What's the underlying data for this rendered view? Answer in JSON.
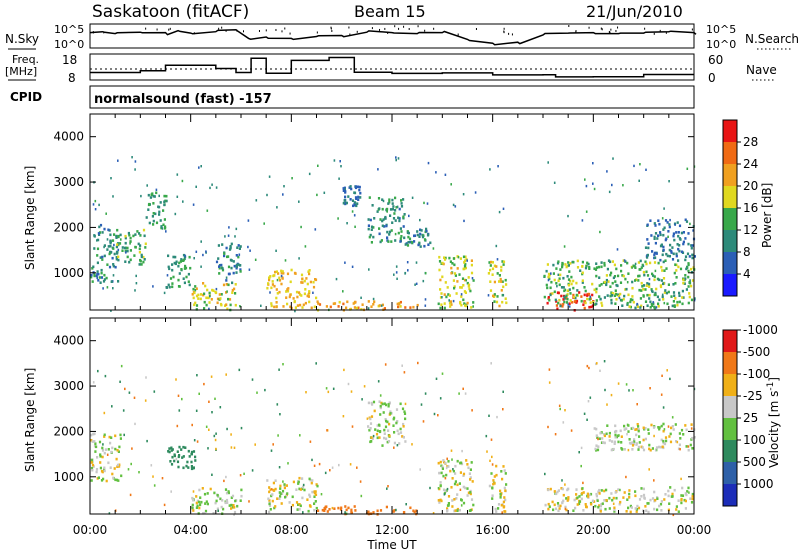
{
  "header": {
    "station": "Saskatoon (fitACF)",
    "beam": "Beam 15",
    "date": "21/Jun/2010"
  },
  "side_labels": {
    "nsky": "N.Sky",
    "freq_line1": "Freq.",
    "freq_line2": "[MHz]",
    "cpid": "CPID",
    "nsearch": "N.Search",
    "nave": "Nave"
  },
  "cpid_text": "normalsound (fast) -157",
  "time_axis": {
    "label": "Time UT",
    "ticks": [
      "00:00",
      "04:00",
      "08:00",
      "12:00",
      "16:00",
      "20:00",
      "00:00"
    ]
  },
  "range_axis": {
    "label": "Slant Range [km]",
    "ticks": [
      "1000",
      "2000",
      "3000",
      "4000"
    ]
  },
  "noise_axis": {
    "left_ticks": [
      "10^5",
      "10^0"
    ],
    "right_ticks": [
      "10^5",
      "10^0"
    ]
  },
  "freq_axis": {
    "left_ticks": [
      "18",
      "8"
    ],
    "right_ticks": [
      "60",
      "0"
    ]
  },
  "power_colorbar": {
    "label": "Power [dB]",
    "ticks": [
      "4",
      "8",
      "12",
      "16",
      "20",
      "24",
      "28"
    ],
    "colors": [
      "#1a1aff",
      "#2b5fb6",
      "#2d8a7a",
      "#38a84a",
      "#e0d820",
      "#f0a020",
      "#f06a14",
      "#e81414"
    ]
  },
  "velocity_colorbar": {
    "label": "Velocity [m s^-1]",
    "ticks": [
      "1000",
      "500",
      "100",
      "25",
      "-25",
      "-100",
      "-500",
      "-1000"
    ],
    "colors": [
      "#1c2db8",
      "#2e60a8",
      "#2e8a5e",
      "#62c040",
      "#c8c8c8",
      "#f0b018",
      "#f07818",
      "#e01818"
    ]
  },
  "chart_data": {
    "type": "heatmap",
    "x_range_hours": [
      0,
      24
    ],
    "y_range_km": [
      180,
      4500
    ],
    "gap_intervals_hours": [
      [
        15.3,
        15.7
      ],
      [
        16.5,
        18.0
      ]
    ],
    "noise_sky_log10": [
      [
        0,
        3.2
      ],
      [
        0.5,
        3.4
      ],
      [
        1.0,
        3.0
      ],
      [
        2.0,
        3.3
      ],
      [
        3.0,
        3.2
      ],
      [
        3.5,
        3.6
      ],
      [
        4.0,
        3.1
      ],
      [
        5.0,
        3.4
      ],
      [
        5.8,
        3.8
      ],
      [
        6.3,
        2.0
      ],
      [
        7.0,
        2.3
      ],
      [
        8.0,
        2.0
      ],
      [
        9.0,
        2.4
      ],
      [
        10.0,
        2.6
      ],
      [
        11.0,
        3.3
      ],
      [
        12.0,
        3.2
      ],
      [
        13.0,
        3.0
      ],
      [
        14.0,
        3.2
      ],
      [
        15.0,
        1.8
      ],
      [
        16.0,
        1.0
      ],
      [
        17.0,
        1.2
      ],
      [
        18.0,
        2.7
      ],
      [
        19.0,
        3.1
      ],
      [
        20.0,
        3.2
      ],
      [
        21.0,
        3.0
      ],
      [
        22.0,
        3.1
      ],
      [
        23.0,
        3.4
      ],
      [
        24.0,
        3.2
      ]
    ],
    "frequency_mhz": [
      [
        0,
        10.5
      ],
      [
        1.0,
        10.5
      ],
      [
        2.0,
        11.3
      ],
      [
        3.0,
        13.8
      ],
      [
        5.0,
        12.3
      ],
      [
        5.8,
        10.5
      ],
      [
        6.4,
        17.0
      ],
      [
        7.0,
        10.2
      ],
      [
        8.0,
        16.0
      ],
      [
        9.5,
        17.3
      ],
      [
        10.5,
        10.6
      ],
      [
        12.0,
        10.1
      ],
      [
        14.0,
        10.3
      ],
      [
        16.0,
        9.4
      ],
      [
        18.0,
        9.5
      ],
      [
        18.5,
        8.5
      ],
      [
        20.0,
        8.6
      ],
      [
        22.0,
        9.6
      ],
      [
        24.0,
        9.6
      ]
    ],
    "power_blobs": [
      {
        "t": [
          0.0,
          1.1
        ],
        "r": [
          800,
          2100
        ],
        "db": 10
      },
      {
        "t": [
          1.0,
          2.2
        ],
        "r": [
          1200,
          2000
        ],
        "db": 13
      },
      {
        "t": [
          2.2,
          3.0
        ],
        "r": [
          2000,
          2800
        ],
        "db": 11
      },
      {
        "t": [
          3.0,
          4.0
        ],
        "r": [
          700,
          1500
        ],
        "db": 12
      },
      {
        "t": [
          4.0,
          5.8
        ],
        "r": [
          200,
          800
        ],
        "db": 18
      },
      {
        "t": [
          5.0,
          6.0
        ],
        "r": [
          800,
          1700
        ],
        "db": 10
      },
      {
        "t": [
          7.0,
          9.0
        ],
        "r": [
          250,
          1100
        ],
        "db": 20
      },
      {
        "t": [
          9.0,
          13.0
        ],
        "r": [
          200,
          400
        ],
        "db": 22
      },
      {
        "t": [
          10.0,
          10.7
        ],
        "r": [
          2500,
          2950
        ],
        "db": 8
      },
      {
        "t": [
          11.0,
          12.5
        ],
        "r": [
          1700,
          2700
        ],
        "db": 11
      },
      {
        "t": [
          12.5,
          13.5
        ],
        "r": [
          1600,
          2000
        ],
        "db": 10
      },
      {
        "t": [
          13.8,
          15.2
        ],
        "r": [
          250,
          1400
        ],
        "db": 17
      },
      {
        "t": [
          15.8,
          16.5
        ],
        "r": [
          250,
          1300
        ],
        "db": 17
      },
      {
        "t": [
          18.0,
          20.0
        ],
        "r": [
          200,
          600
        ],
        "db": 29
      },
      {
        "t": [
          18.0,
          24.0
        ],
        "r": [
          250,
          1300
        ],
        "db": 14
      },
      {
        "t": [
          22.0,
          24.0
        ],
        "r": [
          1300,
          2200
        ],
        "db": 8
      }
    ],
    "velocity_blobs": [
      {
        "t": [
          0.0,
          1.2
        ],
        "r": [
          900,
          2000
        ],
        "v": 0
      },
      {
        "t": [
          3.0,
          4.2
        ],
        "r": [
          1200,
          1700
        ],
        "v": 120
      },
      {
        "t": [
          4.0,
          6.0
        ],
        "r": [
          200,
          800
        ],
        "v": 10
      },
      {
        "t": [
          7.0,
          9.0
        ],
        "r": [
          250,
          1000
        ],
        "v": 0
      },
      {
        "t": [
          9.0,
          13.0
        ],
        "r": [
          200,
          380
        ],
        "v": -150
      },
      {
        "t": [
          11.0,
          12.5
        ],
        "r": [
          1700,
          2700
        ],
        "v": 10
      },
      {
        "t": [
          13.8,
          15.2
        ],
        "r": [
          250,
          1400
        ],
        "v": 0
      },
      {
        "t": [
          15.8,
          16.5
        ],
        "r": [
          250,
          1300
        ],
        "v": 0
      },
      {
        "t": [
          18.0,
          24.0
        ],
        "r": [
          250,
          800
        ],
        "v": 0
      },
      {
        "t": [
          20.0,
          24.0
        ],
        "r": [
          1600,
          2200
        ],
        "v": 5
      }
    ]
  }
}
